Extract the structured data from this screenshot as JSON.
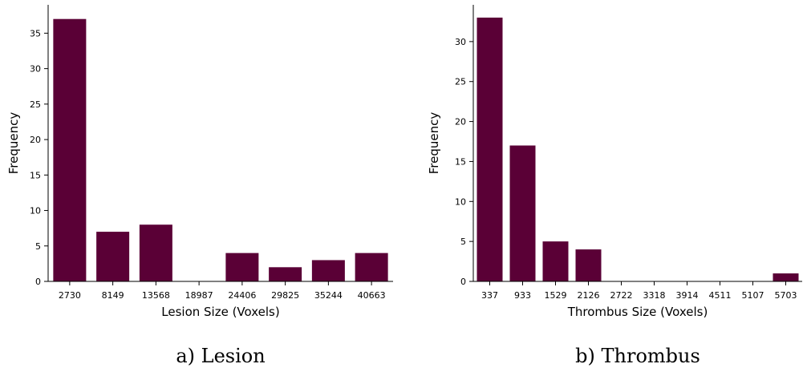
{
  "colors": {
    "bar": "#5a0036",
    "axis": "#000000"
  },
  "chart_data": [
    {
      "type": "bar",
      "title": "",
      "caption": "a) Lesion",
      "xlabel": "Lesion Size (Voxels)",
      "ylabel": "Frequency",
      "categories": [
        "2730",
        "8149",
        "13568",
        "18987",
        "24406",
        "29825",
        "35244",
        "40663"
      ],
      "values": [
        37,
        7,
        8,
        0,
        4,
        2,
        3,
        4
      ],
      "ylim": [
        0,
        39
      ],
      "yticks": [
        0,
        5,
        10,
        15,
        20,
        25,
        30,
        35
      ],
      "grid": false,
      "legend": "none"
    },
    {
      "type": "bar",
      "title": "",
      "caption": "b) Thrombus",
      "xlabel": "Thrombus Size (Voxels)",
      "ylabel": "Frequency",
      "categories": [
        "337",
        "933",
        "1529",
        "2126",
        "2722",
        "3318",
        "3914",
        "4511",
        "5107",
        "5703"
      ],
      "values": [
        33,
        17,
        5,
        4,
        0,
        0,
        0,
        0,
        0,
        1
      ],
      "ylim": [
        0,
        34.6
      ],
      "yticks": [
        0,
        5,
        10,
        15,
        20,
        25,
        30
      ],
      "grid": false,
      "legend": "none"
    }
  ]
}
